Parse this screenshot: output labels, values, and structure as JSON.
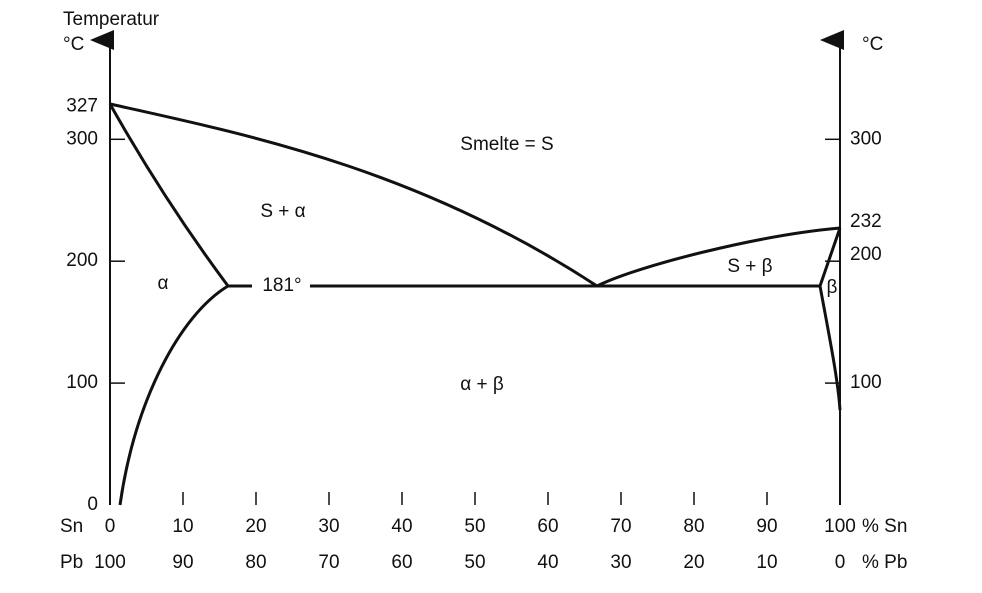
{
  "axes": {
    "y_title": "Temperatur",
    "y_unit_left": "°C",
    "y_unit_right": "°C",
    "left_ticks": [
      0,
      100,
      200,
      300,
      327
    ],
    "right_ticks": [
      100,
      200,
      232,
      300
    ],
    "sn_label": "Sn",
    "pb_label": "Pb",
    "sn_ticks": [
      0,
      10,
      20,
      30,
      40,
      50,
      60,
      70,
      80,
      90,
      100
    ],
    "pb_ticks": [
      100,
      90,
      80,
      70,
      60,
      50,
      40,
      30,
      20,
      10,
      0
    ],
    "sn_unit": "% Sn",
    "pb_unit": "% Pb"
  },
  "regions": {
    "melt": "Smelte = S",
    "s_alpha": "S + α",
    "alpha": "α",
    "eutectic": "181°",
    "alpha_beta": "α + β",
    "s_beta": "S + β",
    "beta": "β"
  }
}
